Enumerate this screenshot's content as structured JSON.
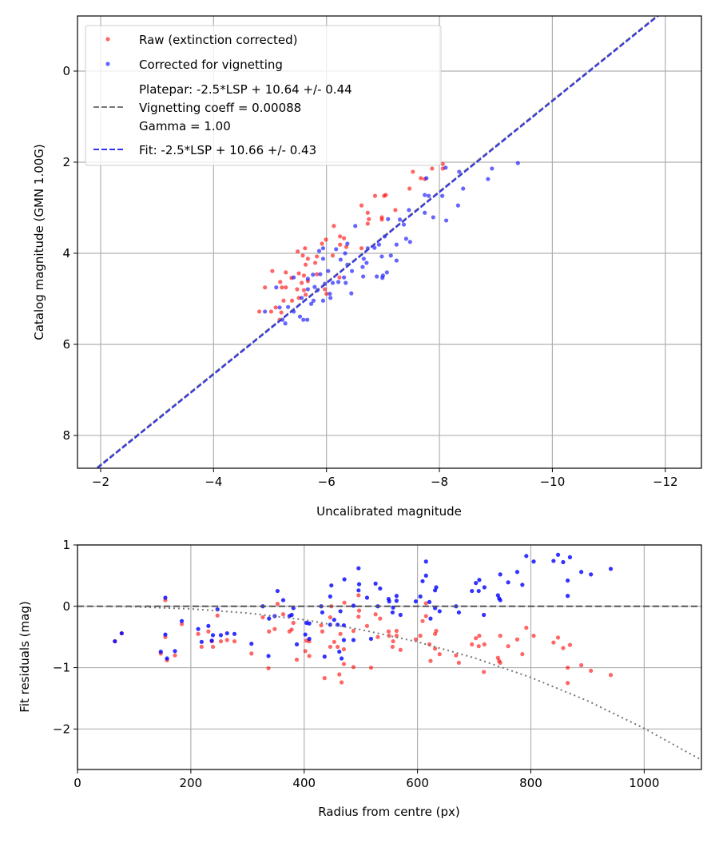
{
  "chart_data": [
    {
      "type": "scatter",
      "title": "",
      "xlabel": "Uncalibrated magnitude",
      "ylabel": "Catalog magnitude (GMN 1.00G)",
      "xlim": [
        -1.59,
        -12.64
      ],
      "ylim": [
        8.72,
        -1.21
      ],
      "x_inverted": true,
      "y_inverted": true,
      "grid": true,
      "xticks": [
        -2,
        -4,
        -6,
        -8,
        -10,
        -12
      ],
      "xtick_labels": [
        "−2",
        "−4",
        "−6",
        "−8",
        "−10",
        "−12"
      ],
      "yticks": [
        0,
        2,
        4,
        6,
        8
      ],
      "ytick_labels": [
        "0",
        "2",
        "4",
        "6",
        "8"
      ],
      "legend_position": "top-left",
      "legend": [
        {
          "label": "Raw (extinction corrected)",
          "kind": "marker",
          "color": "#ff0000"
        },
        {
          "label": "Corrected for vignetting",
          "kind": "marker",
          "color": "#0000ff"
        },
        {
          "label_lines": [
            "Platepar: -2.5*LSP + 10.64 +/- 0.44",
            "Vignetting coeff = 0.00088",
            "Gamma = 1.00"
          ],
          "kind": "dashed",
          "color": "#777777"
        },
        {
          "label": "Fit: -2.5*LSP + 10.66 +/- 0.43",
          "kind": "dashed",
          "color": "#3333ee"
        }
      ],
      "lines": [
        {
          "name": "platepar",
          "slope": 1,
          "intercept": 10.64,
          "color": "#777777",
          "style": "dashed"
        },
        {
          "name": "fit",
          "slope": 1,
          "intercept": 10.66,
          "color": "#3333ee",
          "style": "dashed"
        }
      ],
      "series": [
        {
          "name": "Raw (extinction corrected)",
          "color": "#ff0000",
          "points": [
            [
              -7.53,
              2.21
            ],
            [
              -7.87,
              2.14
            ],
            [
              -8.06,
              2.04
            ],
            [
              -8.06,
              2.14
            ],
            [
              -7.67,
              2.35
            ],
            [
              -7.74,
              2.37
            ],
            [
              -7.47,
              2.58
            ],
            [
              -6.86,
              2.74
            ],
            [
              -7.02,
              2.74
            ],
            [
              -7.05,
              2.72
            ],
            [
              -6.62,
              2.95
            ],
            [
              -6.73,
              3.11
            ],
            [
              -6.75,
              3.25
            ],
            [
              -6.73,
              3.35
            ],
            [
              -6.98,
              3.21
            ],
            [
              -6.98,
              3.26
            ],
            [
              -7.22,
              3.05
            ],
            [
              -6.62,
              3.89
            ],
            [
              -6.13,
              3.4
            ],
            [
              -6.24,
              3.63
            ],
            [
              -6.31,
              3.67
            ],
            [
              -5.99,
              3.7
            ],
            [
              -5.92,
              3.79
            ],
            [
              -6.24,
              3.81
            ],
            [
              -6.35,
              3.86
            ],
            [
              -5.62,
              3.89
            ],
            [
              -5.49,
              3.96
            ],
            [
              -5.58,
              4.05
            ],
            [
              -5.67,
              4.12
            ],
            [
              -6.11,
              4.05
            ],
            [
              -5.83,
              4.07
            ],
            [
              -5.8,
              4.21
            ],
            [
              -5.63,
              4.25
            ],
            [
              -5.04,
              4.39
            ],
            [
              -5.28,
              4.42
            ],
            [
              -5.51,
              4.44
            ],
            [
              -5.38,
              4.54
            ],
            [
              -5.6,
              4.49
            ],
            [
              -5.67,
              4.61
            ],
            [
              -5.18,
              4.63
            ],
            [
              -5.56,
              4.65
            ],
            [
              -4.91,
              4.75
            ],
            [
              -5.21,
              4.75
            ],
            [
              -5.28,
              4.75
            ],
            [
              -5.48,
              4.79
            ],
            [
              -5.6,
              4.81
            ],
            [
              -5.97,
              4.79
            ],
            [
              -6.0,
              4.89
            ],
            [
              -5.24,
              5.04
            ],
            [
              -5.39,
              5.04
            ],
            [
              -5.1,
              5.19
            ],
            [
              -4.81,
              5.28
            ],
            [
              -5.02,
              5.28
            ],
            [
              -6.23,
              4.53
            ],
            [
              -5.83,
              4.46
            ],
            [
              -5.63,
              4.91
            ],
            [
              -5.51,
              4.98
            ],
            [
              -5.17,
              5.46
            ],
            [
              -5.2,
              5.3
            ]
          ]
        },
        {
          "name": "Corrected for vignetting",
          "color": "#0000ff",
          "points": [
            [
              -9.39,
              2.02
            ],
            [
              -8.93,
              2.14
            ],
            [
              -8.11,
              2.12
            ],
            [
              -8.35,
              2.21
            ],
            [
              -8.86,
              2.37
            ],
            [
              -7.77,
              2.35
            ],
            [
              -8.42,
              2.58
            ],
            [
              -7.74,
              2.72
            ],
            [
              -7.81,
              2.74
            ],
            [
              -8.05,
              2.74
            ],
            [
              -8.33,
              2.95
            ],
            [
              -7.46,
              3.05
            ],
            [
              -7.74,
              3.11
            ],
            [
              -7.89,
              3.21
            ],
            [
              -8.12,
              3.28
            ],
            [
              -7.09,
              3.25
            ],
            [
              -7.3,
              3.26
            ],
            [
              -7.37,
              3.37
            ],
            [
              -6.51,
              3.4
            ],
            [
              -7.03,
              3.63
            ],
            [
              -7.41,
              3.68
            ],
            [
              -7.48,
              3.75
            ],
            [
              -7.24,
              3.81
            ],
            [
              -6.85,
              3.88
            ],
            [
              -6.93,
              3.81
            ],
            [
              -6.73,
              3.89
            ],
            [
              -6.98,
              4.07
            ],
            [
              -7.14,
              4.05
            ],
            [
              -7.24,
              4.16
            ],
            [
              -6.66,
              4.12
            ],
            [
              -6.71,
              4.21
            ],
            [
              -6.64,
              4.3
            ],
            [
              -6.45,
              4.39
            ],
            [
              -7.07,
              4.42
            ],
            [
              -7.0,
              4.49
            ],
            [
              -6.89,
              4.51
            ],
            [
              -6.65,
              4.51
            ],
            [
              -6.99,
              4.54
            ],
            [
              -6.37,
              3.79
            ],
            [
              -6.17,
              3.91
            ],
            [
              -5.87,
              3.95
            ],
            [
              -5.94,
              3.89
            ],
            [
              -6.33,
              4.0
            ],
            [
              -5.94,
              4.12
            ],
            [
              -6.25,
              4.14
            ],
            [
              -6.37,
              4.25
            ],
            [
              -6.03,
              4.39
            ],
            [
              -5.89,
              4.46
            ],
            [
              -5.76,
              4.47
            ],
            [
              -5.42,
              4.53
            ],
            [
              -5.67,
              4.56
            ],
            [
              -6.31,
              4.53
            ],
            [
              -6.11,
              4.65
            ],
            [
              -6.21,
              4.63
            ],
            [
              -6.34,
              4.65
            ],
            [
              -5.97,
              4.67
            ],
            [
              -5.79,
              4.74
            ],
            [
              -5.11,
              4.75
            ],
            [
              -5.67,
              4.79
            ],
            [
              -5.84,
              4.81
            ],
            [
              -6.06,
              4.89
            ],
            [
              -6.07,
              4.98
            ],
            [
              -6.44,
              4.88
            ],
            [
              -5.56,
              4.98
            ],
            [
              -5.77,
              5.04
            ],
            [
              -5.94,
              5.04
            ],
            [
              -5.73,
              5.11
            ],
            [
              -5.32,
              5.18
            ],
            [
              -5.17,
              5.19
            ],
            [
              -4.91,
              5.28
            ],
            [
              -5.42,
              5.28
            ],
            [
              -5.53,
              5.39
            ],
            [
              -5.59,
              5.46
            ],
            [
              -5.66,
              5.46
            ],
            [
              -5.27,
              5.54
            ],
            [
              -5.22,
              5.46
            ]
          ]
        }
      ]
    },
    {
      "type": "scatter",
      "title": "",
      "xlabel": "Radius from centre (px)",
      "ylabel": "Fit residuals (mag)",
      "xlim": [
        0,
        1101
      ],
      "ylim": [
        -2.66,
        1.0
      ],
      "grid": true,
      "xticks": [
        0,
        200,
        400,
        600,
        800,
        1000
      ],
      "xtick_labels": [
        "0",
        "200",
        "400",
        "600",
        "800",
        "1000"
      ],
      "yticks": [
        1,
        0,
        -1,
        -2
      ],
      "ytick_labels": [
        "1",
        "0",
        "−1",
        "−2"
      ],
      "zero_line": {
        "y": 0,
        "color": "#555555",
        "style": "dashed"
      },
      "vignetting_curve": {
        "color": "#777777",
        "style": "dotted",
        "r": [
          0,
          100,
          200,
          300,
          400,
          500,
          600,
          700,
          800,
          900,
          1000,
          1100
        ],
        "y": [
          0,
          -0.008,
          -0.042,
          -0.11,
          -0.22,
          -0.38,
          -0.58,
          -0.84,
          -1.16,
          -1.54,
          -1.99,
          -2.5
        ]
      },
      "radius": [
        66,
        78,
        155,
        155,
        147,
        158,
        172,
        184,
        213,
        219,
        231,
        239,
        237,
        247,
        253,
        264,
        277,
        307,
        327,
        337,
        338,
        348,
        353,
        363,
        374,
        378,
        381,
        387,
        402,
        404,
        409,
        409,
        430,
        432,
        436,
        446,
        446,
        448,
        453,
        459,
        462,
        464,
        466,
        470,
        470,
        471,
        487,
        487,
        496,
        497,
        496,
        511,
        518,
        526,
        530,
        534,
        549,
        550,
        556,
        557,
        563,
        563,
        570,
        597,
        605,
        609,
        615,
        615,
        621,
        623,
        631,
        633,
        631,
        639,
        668,
        673,
        696,
        703,
        708,
        709,
        717,
        718,
        742,
        744,
        746,
        746,
        760,
        776,
        785,
        792,
        805,
        840,
        848,
        857,
        865,
        865,
        869,
        889,
        906,
        941
      ],
      "series": [
        {
          "name": "Raw (extinction corrected)",
          "color": "#ff0000",
          "values": [
            -0.57,
            -0.44,
            0.1,
            -0.5,
            -0.77,
            -0.88,
            -0.8,
            -0.29,
            -0.45,
            -0.66,
            -0.41,
            -0.66,
            -0.57,
            -0.15,
            -0.57,
            -0.55,
            -0.57,
            -0.77,
            -0.18,
            -1.01,
            -0.41,
            -0.37,
            0.04,
            -0.13,
            -0.41,
            -0.38,
            -0.27,
            -0.87,
            -0.73,
            -0.56,
            -0.57,
            -0.81,
            -0.31,
            -0.41,
            -1.17,
            -0.66,
            -0.18,
            0.0,
            -0.58,
            -0.66,
            -1.11,
            -0.45,
            -1.24,
            -0.7,
            -0.94,
            0.06,
            -0.4,
            -0.99,
            0.18,
            -0.07,
            -0.17,
            -0.32,
            -1.0,
            -0.13,
            -0.5,
            -0.2,
            -0.41,
            -0.48,
            -0.66,
            -0.57,
            -0.4,
            -0.48,
            -0.71,
            -0.54,
            -0.48,
            -0.24,
            -0.16,
            0.05,
            -0.62,
            -0.89,
            -0.45,
            -0.4,
            -0.69,
            -0.78,
            -0.8,
            -0.92,
            -0.62,
            -0.52,
            -0.65,
            -0.48,
            -1.07,
            -0.62,
            -0.84,
            -0.89,
            -0.92,
            -0.48,
            -0.65,
            -0.54,
            -0.78,
            -0.35,
            -0.48,
            -0.59,
            -0.51,
            -0.68,
            -1.0,
            -1.25,
            -0.63,
            -0.96,
            -1.05,
            -1.12
          ]
        },
        {
          "name": "Corrected for vignetting",
          "color": "#0000ff",
          "values": [
            -0.57,
            -0.44,
            0.14,
            -0.46,
            -0.74,
            -0.85,
            -0.73,
            -0.24,
            -0.37,
            -0.58,
            -0.32,
            -0.47,
            -0.56,
            -0.05,
            -0.47,
            -0.44,
            -0.45,
            -0.61,
            0.0,
            -0.81,
            -0.2,
            -0.16,
            0.25,
            0.1,
            -0.16,
            -0.14,
            -0.03,
            -0.62,
            -0.46,
            -0.27,
            -0.28,
            -0.53,
            0.0,
            -0.1,
            -0.82,
            -0.3,
            0.16,
            0.34,
            -0.22,
            -0.3,
            -0.74,
            -0.08,
            -0.85,
            -0.31,
            -0.55,
            0.44,
            0.01,
            -0.55,
            0.62,
            0.36,
            0.26,
            0.14,
            -0.53,
            0.37,
            0.0,
            0.29,
            0.12,
            0.08,
            -0.1,
            -0.02,
            0.17,
            0.09,
            -0.14,
            0.08,
            0.16,
            0.41,
            0.5,
            0.73,
            0.07,
            -0.2,
            0.26,
            0.31,
            -0.03,
            -0.08,
            0.0,
            -0.1,
            0.25,
            0.38,
            0.25,
            0.43,
            -0.14,
            0.31,
            0.18,
            0.13,
            0.1,
            0.52,
            0.39,
            0.56,
            0.35,
            0.82,
            0.73,
            0.74,
            0.84,
            0.72,
            0.42,
            0.17,
            0.8,
            0.56,
            0.52,
            0.61
          ]
        }
      ]
    }
  ]
}
